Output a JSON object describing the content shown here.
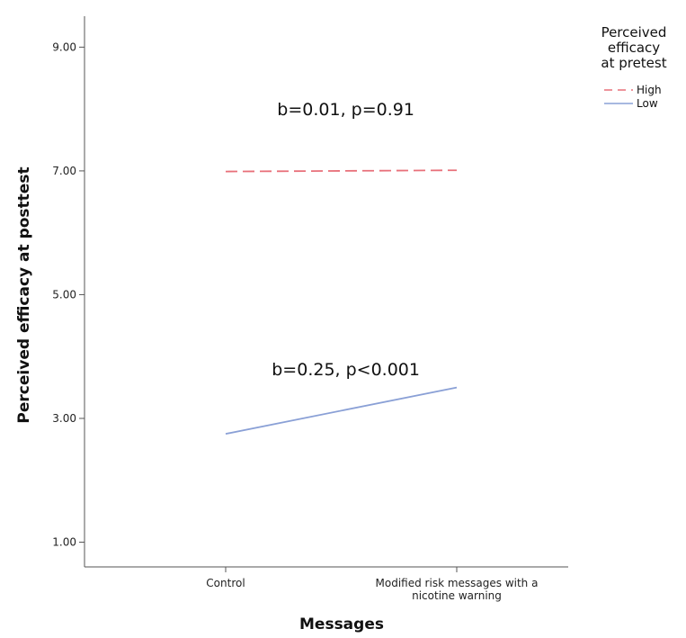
{
  "chart_data": {
    "type": "line",
    "title": "",
    "xlabel": "Messages",
    "ylabel": "Perceived efficacy at posttest",
    "categories": [
      [
        "Control"
      ],
      [
        "Modified risk messages with a",
        "nicotine warning"
      ]
    ],
    "y_ticks": [
      "1.00",
      "3.00",
      "5.00",
      "7.00",
      "9.00"
    ],
    "y_tick_values": [
      1,
      3,
      5,
      7,
      9
    ],
    "ylim": [
      0.6,
      9.5
    ],
    "grid": false,
    "legend": {
      "placement": "top-right",
      "title_lines": [
        "Perceived",
        "efficacy",
        "at pretest"
      ],
      "entries": [
        "High",
        "Low"
      ]
    },
    "series": [
      {
        "name": "High",
        "values": [
          6.99,
          7.01
        ],
        "color": "#e8707a",
        "dash": true
      },
      {
        "name": "Low",
        "values": [
          2.75,
          3.5
        ],
        "color": "#8aa0d6",
        "dash": false
      }
    ],
    "annotations": [
      {
        "text": "b=0.01, p=0.91",
        "x": 0.52,
        "y": 8.0
      },
      {
        "text": "b=0.25, p<0.001",
        "x": 0.52,
        "y": 3.8
      }
    ]
  }
}
